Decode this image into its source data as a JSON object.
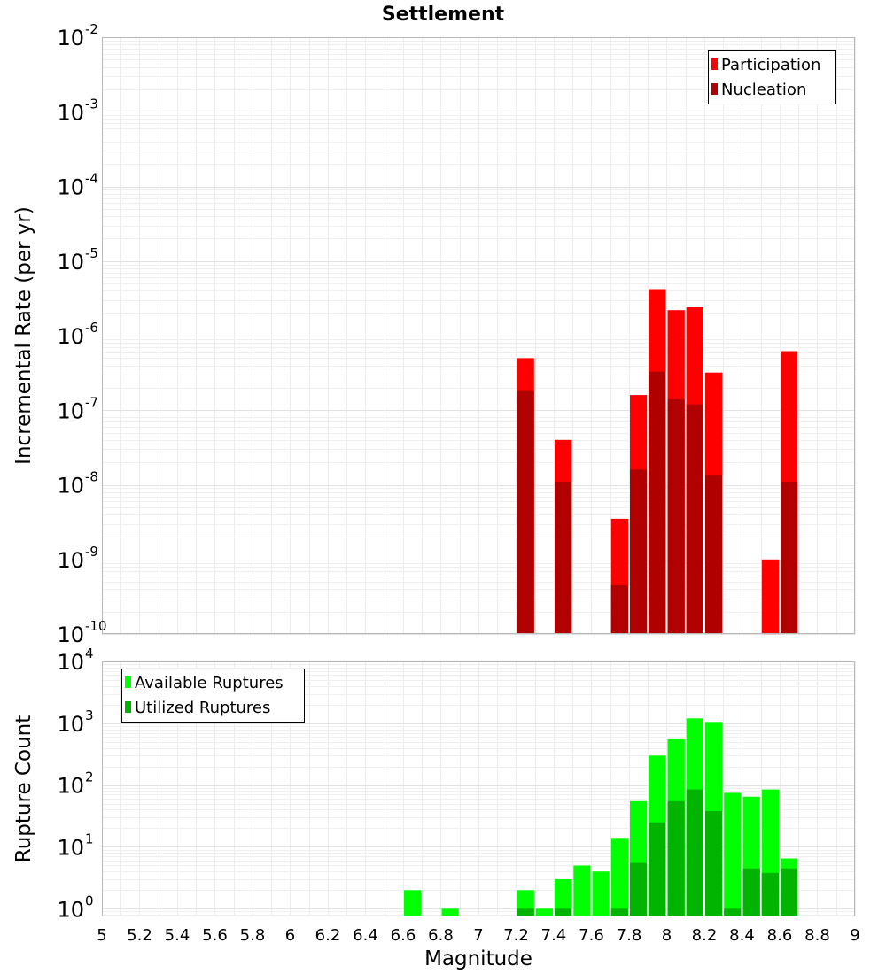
{
  "title": "Settlement",
  "xlabel": "Magnitude",
  "chart_data": [
    {
      "type": "bar",
      "title": "Settlement",
      "ylabel": "Incremental Rate (per yr)",
      "yscale": "log",
      "ylim": [
        1e-10,
        0.01
      ],
      "xlim": [
        5,
        9
      ],
      "bar_width": 0.1,
      "grid": true,
      "legend_position": "top-right",
      "x_ticks": [
        5,
        5.2,
        5.4,
        5.6,
        5.8,
        6,
        6.2,
        6.4,
        6.6,
        6.8,
        7,
        7.2,
        7.4,
        7.6,
        7.8,
        8,
        8.2,
        8.4,
        8.6,
        8.8,
        9
      ],
      "x_tick_labels": [
        "5",
        "5.2",
        "5.4",
        "5.6",
        "5.8",
        "6",
        "6.2",
        "6.4",
        "6.6",
        "6.8",
        "7",
        "7.2",
        "7.4",
        "7.6",
        "7.8",
        "8",
        "8.2",
        "8.4",
        "8.6",
        "8.8",
        "9"
      ],
      "y_tick_exponents": [
        "-10",
        "-9",
        "-8",
        "-7",
        "-6",
        "-5",
        "-4",
        "-3",
        "-2"
      ],
      "y_tick_base": "10",
      "series": [
        {
          "name": "Participation",
          "color": "#ff0000",
          "x": [
            7.25,
            7.45,
            7.75,
            7.85,
            7.95,
            8.05,
            8.15,
            8.25,
            8.55,
            8.65
          ],
          "values": [
            5e-07,
            4e-08,
            3.5e-09,
            1.6e-07,
            4.2e-06,
            2.2e-06,
            2.4e-06,
            3.2e-07,
            1e-09,
            6.2e-07
          ]
        },
        {
          "name": "Nucleation",
          "color": "#b00000",
          "x": [
            7.25,
            7.45,
            7.75,
            7.85,
            7.95,
            8.05,
            8.15,
            8.25,
            8.65
          ],
          "values": [
            1.8e-07,
            1.1e-08,
            4.5e-10,
            1.6e-08,
            3.3e-07,
            1.4e-07,
            1.2e-07,
            1.35e-08,
            1.1e-08
          ]
        }
      ]
    },
    {
      "type": "bar",
      "ylabel": "Rupture Count",
      "yscale": "log",
      "ylim": [
        0.75,
        10000
      ],
      "xlim": [
        5,
        9
      ],
      "bar_width": 0.1,
      "grid": true,
      "legend_position": "top-left",
      "y_tick_exponents": [
        "0",
        "1",
        "2",
        "3",
        "4"
      ],
      "y_tick_base": "10",
      "series": [
        {
          "name": "Available Ruptures",
          "color": "#00ff00",
          "x": [
            6.65,
            6.85,
            7.25,
            7.35,
            7.45,
            7.55,
            7.65,
            7.75,
            7.85,
            7.95,
            8.05,
            8.15,
            8.25,
            8.35,
            8.45,
            8.55,
            8.65
          ],
          "values": [
            2,
            1,
            2,
            1,
            3,
            5,
            4,
            14,
            55,
            300,
            550,
            1200,
            1050,
            75,
            65,
            85,
            6.5
          ]
        },
        {
          "name": "Utilized Ruptures",
          "color": "#00b400",
          "x": [
            7.25,
            7.45,
            7.75,
            7.85,
            7.95,
            8.05,
            8.15,
            8.25,
            8.35,
            8.45,
            8.55,
            8.65
          ],
          "values": [
            1,
            1,
            1,
            5.5,
            25,
            55,
            85,
            38,
            1,
            4.5,
            3.8,
            4.5
          ]
        }
      ]
    }
  ]
}
